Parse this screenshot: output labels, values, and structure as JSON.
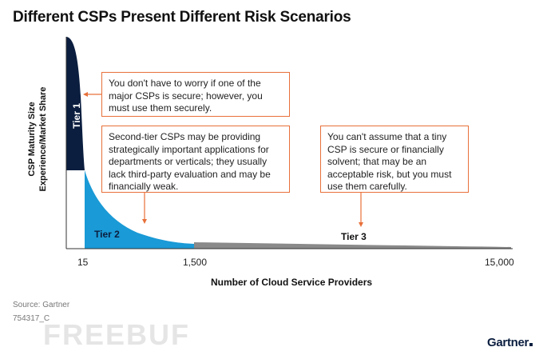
{
  "title": "Different CSPs Present Different Risk Scenarios",
  "y_axis": {
    "label_line1": "CSP Maturity Size",
    "label_line2": "Experience/Market Share"
  },
  "x_axis": {
    "label": "Number of Cloud Service Providers",
    "ticks": [
      "15",
      "1,500",
      "15,000"
    ]
  },
  "tiers": [
    {
      "label": "Tier 1",
      "color": "#0b1e3f"
    },
    {
      "label": "Tier 2",
      "color": "#1a9ad6"
    },
    {
      "label": "Tier 3",
      "color": "#8a8a8a"
    }
  ],
  "callouts": [
    {
      "text": "You don't have to worry if one of the major CSPs is secure; however, you must use them securely."
    },
    {
      "text": "Second-tier CSPs may be providing strategically important applications for departments or verticals; they usually lack third-party evaluation and may be financially weak."
    },
    {
      "text": "You can't assume that a tiny CSP is secure or financially solvent; that may be an acceptable risk, but you must use them carefully."
    }
  ],
  "accent_color": "#e8703a",
  "source": "Source: Gartner",
  "doc_id": "754317_C",
  "watermark": "FREEBUF",
  "logo": "Gartner"
}
